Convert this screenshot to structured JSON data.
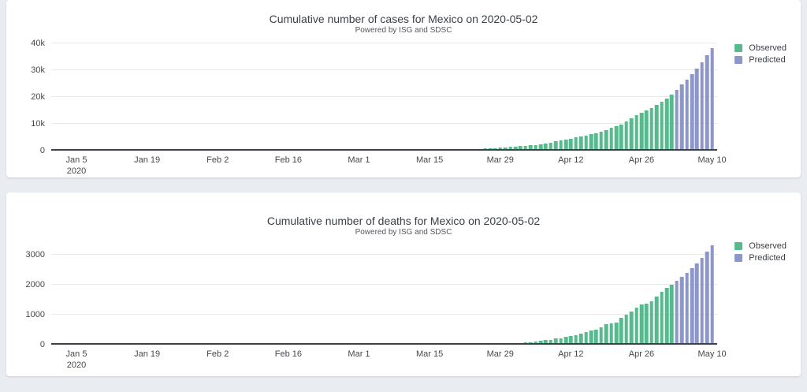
{
  "page": {
    "background_color": "#e9edf2"
  },
  "chart_data": [
    {
      "type": "bar",
      "title": "Cumulative number of cases for Mexico on 2020-05-02",
      "subtitle": "Powered by ISG and SDSC",
      "ylabel": "",
      "xlabel": "",
      "ylim": [
        0,
        40000
      ],
      "grid": true,
      "legend_position": "top-right",
      "yticks": [
        {
          "value": 0,
          "label": "0"
        },
        {
          "value": 10000,
          "label": "10k"
        },
        {
          "value": 20000,
          "label": "20k"
        },
        {
          "value": 30000,
          "label": "30k"
        },
        {
          "value": 40000,
          "label": "40k"
        }
      ],
      "xaxis": {
        "start": "2019-12-31",
        "end": "2020-05-11",
        "ticks": [
          {
            "date": "2020-01-05",
            "label": "Jan 5",
            "sublabel": "2020"
          },
          {
            "date": "2020-01-19",
            "label": "Jan 19"
          },
          {
            "date": "2020-02-02",
            "label": "Feb 2"
          },
          {
            "date": "2020-02-16",
            "label": "Feb 16"
          },
          {
            "date": "2020-03-01",
            "label": "Mar 1"
          },
          {
            "date": "2020-03-15",
            "label": "Mar 15"
          },
          {
            "date": "2020-03-29",
            "label": "Mar 29"
          },
          {
            "date": "2020-04-12",
            "label": "Apr 12"
          },
          {
            "date": "2020-04-26",
            "label": "Apr 26"
          },
          {
            "date": "2020-05-10",
            "label": "May 10"
          }
        ]
      },
      "series": [
        {
          "name": "Observed",
          "color": "#57b98d",
          "start_date": "2020-02-28",
          "values": [
            2,
            4,
            5,
            5,
            5,
            5,
            5,
            6,
            6,
            7,
            7,
            7,
            8,
            12,
            12,
            26,
            41,
            53,
            82,
            93,
            118,
            164,
            203,
            251,
            316,
            367,
            405,
            475,
            585,
            717,
            848,
            993,
            1094,
            1215,
            1378,
            1510,
            1688,
            1890,
            2143,
            2439,
            2785,
            3181,
            3441,
            3844,
            4219,
            4661,
            5014,
            5399,
            5847,
            6297,
            6875,
            7497,
            8261,
            8772,
            9501,
            10544,
            11633,
            12872,
            13842,
            14677,
            15529,
            16752,
            17799,
            19224,
            20739
          ]
        },
        {
          "name": "Predicted",
          "color": "#8c96c9",
          "start_date": "2020-05-03",
          "values": [
            22500,
            24300,
            26200,
            28200,
            30400,
            32700,
            35200,
            37900
          ]
        }
      ]
    },
    {
      "type": "bar",
      "title": "Cumulative number of deaths for Mexico on 2020-05-02",
      "subtitle": "Powered by ISG and SDSC",
      "ylabel": "",
      "xlabel": "",
      "ylim": [
        0,
        3500
      ],
      "grid": true,
      "legend_position": "top-right",
      "yticks": [
        {
          "value": 0,
          "label": "0"
        },
        {
          "value": 1000,
          "label": "1000"
        },
        {
          "value": 2000,
          "label": "2000"
        },
        {
          "value": 3000,
          "label": "3000"
        }
      ],
      "xaxis": {
        "start": "2019-12-31",
        "end": "2020-05-11",
        "ticks": [
          {
            "date": "2020-01-05",
            "label": "Jan 5",
            "sublabel": "2020"
          },
          {
            "date": "2020-01-19",
            "label": "Jan 19"
          },
          {
            "date": "2020-02-02",
            "label": "Feb 2"
          },
          {
            "date": "2020-02-16",
            "label": "Feb 16"
          },
          {
            "date": "2020-03-01",
            "label": "Mar 1"
          },
          {
            "date": "2020-03-15",
            "label": "Mar 15"
          },
          {
            "date": "2020-03-29",
            "label": "Mar 29"
          },
          {
            "date": "2020-04-12",
            "label": "Apr 12"
          },
          {
            "date": "2020-04-26",
            "label": "Apr 26"
          },
          {
            "date": "2020-05-10",
            "label": "May 10"
          }
        ]
      },
      "series": [
        {
          "name": "Observed",
          "color": "#57b98d",
          "start_date": "2020-03-18",
          "values": [
            1,
            1,
            2,
            2,
            3,
            4,
            4,
            5,
            6,
            8,
            12,
            16,
            20,
            28,
            29,
            37,
            50,
            60,
            79,
            94,
            125,
            141,
            174,
            194,
            233,
            273,
            296,
            332,
            406,
            449,
            486,
            546,
            650,
            686,
            712,
            857,
            970,
            1069,
            1221,
            1305,
            1351,
            1434,
            1569,
            1732,
            1859,
            1972
          ]
        },
        {
          "name": "Predicted",
          "color": "#8c96c9",
          "start_date": "2020-05-03",
          "values": [
            2100,
            2230,
            2370,
            2520,
            2680,
            2860,
            3070,
            3300
          ]
        }
      ]
    }
  ]
}
